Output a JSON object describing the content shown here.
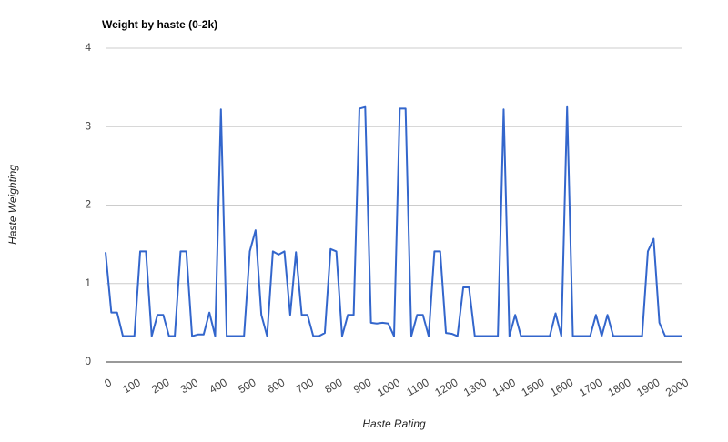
{
  "chart_data": {
    "type": "line",
    "title": "Weight by haste (0-2k)",
    "x_label": "Haste Rating",
    "y_label": "Haste Weighting",
    "x": [
      0,
      20,
      40,
      60,
      80,
      100,
      120,
      140,
      160,
      180,
      200,
      220,
      240,
      260,
      280,
      300,
      320,
      340,
      360,
      380,
      400,
      420,
      440,
      460,
      480,
      500,
      520,
      540,
      560,
      580,
      600,
      620,
      640,
      660,
      680,
      700,
      720,
      740,
      760,
      780,
      800,
      820,
      840,
      860,
      880,
      900,
      920,
      940,
      960,
      980,
      1000,
      1020,
      1040,
      1060,
      1080,
      1100,
      1120,
      1140,
      1160,
      1180,
      1200,
      1220,
      1240,
      1260,
      1280,
      1300,
      1320,
      1340,
      1360,
      1380,
      1400,
      1420,
      1440,
      1460,
      1480,
      1500,
      1520,
      1540,
      1560,
      1580,
      1600,
      1620,
      1640,
      1660,
      1680,
      1700,
      1720,
      1740,
      1760,
      1780,
      1800,
      1820,
      1840,
      1860,
      1880,
      1900,
      1920,
      1940,
      1960,
      1980,
      2000
    ],
    "values": [
      1.4,
      0.63,
      0.63,
      0.33,
      0.33,
      0.33,
      1.41,
      1.41,
      0.33,
      0.6,
      0.6,
      0.33,
      0.33,
      1.41,
      1.41,
      0.33,
      0.35,
      0.35,
      0.63,
      0.33,
      3.22,
      0.33,
      0.33,
      0.33,
      0.33,
      1.41,
      1.68,
      0.6,
      0.33,
      1.41,
      1.37,
      1.41,
      0.6,
      1.4,
      0.6,
      0.6,
      0.33,
      0.33,
      0.37,
      1.44,
      1.41,
      0.33,
      0.6,
      0.6,
      3.23,
      3.25,
      0.5,
      0.49,
      0.5,
      0.49,
      0.33,
      3.23,
      3.23,
      0.33,
      0.6,
      0.6,
      0.33,
      1.41,
      1.41,
      0.37,
      0.36,
      0.33,
      0.95,
      0.95,
      0.33,
      0.33,
      0.33,
      0.33,
      0.33,
      3.22,
      0.33,
      0.6,
      0.33,
      0.33,
      0.33,
      0.33,
      0.33,
      0.33,
      0.62,
      0.33,
      3.25,
      0.33,
      0.33,
      0.33,
      0.33,
      0.6,
      0.33,
      0.6,
      0.33,
      0.33,
      0.33,
      0.33,
      0.33,
      0.33,
      1.41,
      1.57,
      0.5,
      0.33,
      0.33,
      0.33,
      0.33
    ],
    "color": "#3366cc",
    "xlim": [
      0,
      2000
    ],
    "xticks": [
      0,
      100,
      200,
      300,
      400,
      500,
      600,
      700,
      800,
      900,
      1000,
      1100,
      1200,
      1300,
      1400,
      1500,
      1600,
      1700,
      1800,
      1900,
      2000
    ],
    "ylim": [
      0,
      4
    ],
    "yticks": [
      0,
      1,
      2,
      3,
      4
    ],
    "grid": true
  }
}
